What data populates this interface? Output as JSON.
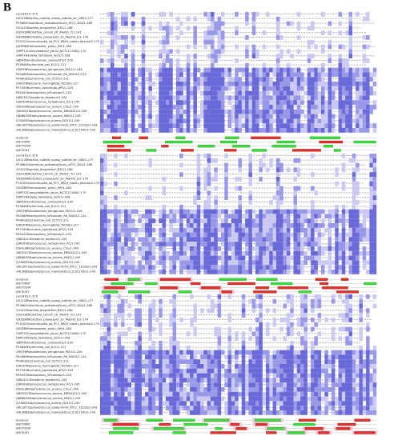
{
  "panel_label": "B",
  "sequence_names": [
    "Lac3161/1-279",
    "Q01126Bacillus_subtilis_subsp_subtilis_str_168/1-277",
    "P33664Clostridium_acetobutylicum_ATCC_824/1-168",
    "O51412Borrelia_burgdorferi_B31/1-168",
    "Q92H36Rickettsia_conorii_str_Malish_7/1-141",
    "Q9ZDA6Rickettsia_prowazekii_str_Madrid_E/1-176",
    "P74102Synechocystis_sp_PCC_6803_substr_Kazusa/1-170",
    "Q9ZM85Helicobacter_pylori_J99/1-166",
    "Q9PP12Campylobacter_jejuni_NCTC11168/1-170",
    "Q9PE76Xylella_fastidiosa_9a5c/1-208",
    "Q8P4J5Xanthomonas_campestris/1-205",
    "P33646Escherichia_coli_K12/1-211",
    "Q9I5Y8Pseudomonas_aeruginosa_PAO1/1-236",
    "P44466Haemophilus_influenzae_Rd_KW20/1-212",
    "P0A6Q3Escherichia_coli_O157/1-211",
    "Q9K0T6Neisseria_meningitidis_MC58/1-217",
    "P57349Buchnera_aphidicola_APS/1-225",
    "P45441Haemophilus_influenzae/1-225",
    "Q8KCK1Chlorobium_tepidum/1-245",
    "Q9RUH4Deinococcus_radiodurans_R1/1-245",
    "Q5HG38Staphylococcus_aureus_COL/1-249",
    "Q6GHQ7Staphylococcus_aureus_MRSA252/1-249",
    "Q8NWZ0Staphylococcus_aureus_MW2/1-249",
    "Q7A6S3Staphylococcus_aureus_N315/1-249",
    "Q8CSK7Staphylococcus_epidermidis_ATCC_12228/1-243",
    "Q4L3N8Staphylococcus_haemolyticus_JCSC1435/1-243"
  ],
  "track_labels": [
    "Jnetpred",
    "JNETHMM",
    "JNETPSSM",
    "JNETJURY"
  ]
}
